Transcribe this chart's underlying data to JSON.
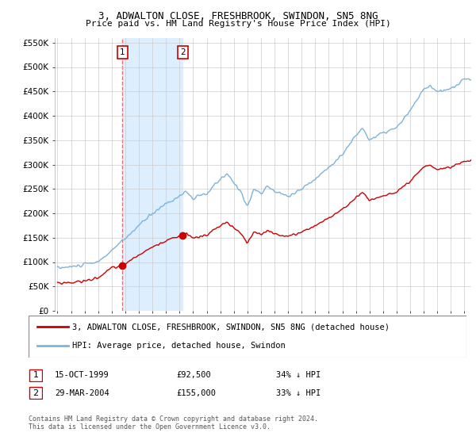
{
  "title": "3, ADWALTON CLOSE, FRESHBROOK, SWINDON, SN5 8NG",
  "subtitle": "Price paid vs. HM Land Registry's House Price Index (HPI)",
  "legend_line1": "3, ADWALTON CLOSE, FRESHBROOK, SWINDON, SN5 8NG (detached house)",
  "legend_line2": "HPI: Average price, detached house, Swindon",
  "transaction1": {
    "label": "1",
    "date": "15-OCT-1999",
    "price": 92500,
    "note": "34% ↓ HPI",
    "x_year": 1999.79
  },
  "transaction2": {
    "label": "2",
    "date": "29-MAR-2004",
    "price": 155000,
    "note": "33% ↓ HPI",
    "x_year": 2004.23
  },
  "footnote": "Contains HM Land Registry data © Crown copyright and database right 2024.\nThis data is licensed under the Open Government Licence v3.0.",
  "hpi_color": "#7eb3d8",
  "property_color": "#cc0000",
  "shading_color": "#ddeeff",
  "dashed_line_color": "#e07070",
  "ylim": [
    0,
    560000
  ],
  "xlim_start": 1994.8,
  "xlim_end": 2025.5
}
